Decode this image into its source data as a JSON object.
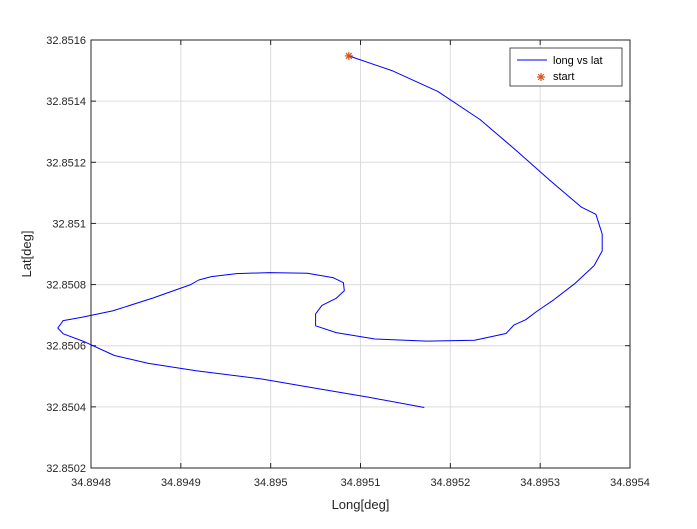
{
  "chart_data": {
    "type": "line",
    "title": "",
    "xlabel": "Long[deg]",
    "ylabel": "Lat[deg]",
    "xlim": [
      34.8948,
      34.8954
    ],
    "ylim": [
      32.8502,
      32.8516
    ],
    "xticks": [
      34.8948,
      34.8949,
      34.895,
      34.8951,
      34.8952,
      34.8953,
      34.8954
    ],
    "xtick_labels": [
      "34.8948",
      "34.8949",
      "34.895",
      "34.8951",
      "34.8952",
      "34.8953",
      "34.8954"
    ],
    "yticks": [
      32.8502,
      32.8504,
      32.8506,
      32.8508,
      32.851,
      32.8512,
      32.8514,
      32.8516
    ],
    "ytick_labels": [
      "32.8502",
      "32.8504",
      "32.8506",
      "32.8508",
      "32.851",
      "32.8512",
      "32.8514",
      "32.8516"
    ],
    "grid": true,
    "legend_position": "top-right",
    "series": [
      {
        "name": "long vs lat",
        "kind": "line",
        "color": "#0000ff",
        "x": [
          34.895087,
          34.895135,
          34.895186,
          34.895233,
          34.895274,
          34.89531,
          34.895346,
          34.895362,
          34.895369,
          34.895369,
          34.89536,
          34.895339,
          34.895315,
          34.895296,
          34.895284,
          34.895271,
          34.895262,
          34.895227,
          34.895174,
          34.895116,
          34.895073,
          34.89505,
          34.89505,
          34.895057,
          34.895073,
          34.895082,
          34.895081,
          34.89507,
          34.895041,
          34.894999,
          34.894962,
          34.894934,
          34.89492,
          34.894911,
          34.894869,
          34.894824,
          34.89479,
          34.894769,
          34.894763,
          34.894769,
          34.894791,
          34.894826,
          34.894864,
          34.894917,
          34.89499,
          34.89505,
          34.89511,
          34.895171
        ],
        "y": [
          32.851548,
          32.8515,
          32.851432,
          32.85134,
          32.851237,
          32.851143,
          32.851053,
          32.85103,
          32.850965,
          32.85091,
          32.850862,
          32.850804,
          32.85075,
          32.850712,
          32.850685,
          32.850668,
          32.85064,
          32.850618,
          32.850615,
          32.850622,
          32.850643,
          32.850665,
          32.850704,
          32.850732,
          32.850755,
          32.85078,
          32.850806,
          32.850822,
          32.850837,
          32.850839,
          32.850836,
          32.850826,
          32.850815,
          32.8508,
          32.850756,
          32.850714,
          32.850693,
          32.850682,
          32.850658,
          32.850639,
          32.850615,
          32.850568,
          32.850542,
          32.850518,
          32.850491,
          32.850461,
          32.850431,
          32.850398
        ]
      },
      {
        "name": "start",
        "kind": "marker",
        "marker": "*",
        "color": "#d95319",
        "x": [
          34.895087
        ],
        "y": [
          32.851548
        ]
      }
    ]
  }
}
